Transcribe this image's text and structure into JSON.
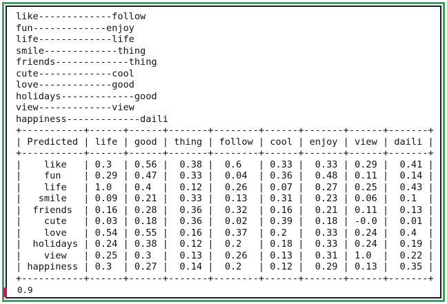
{
  "console": {
    "lines": [
      "like-------------follow",
      "fun-------------enjoy",
      "life-------------life",
      "smile-------------thing",
      "friends-------------thing",
      "cute-------------cool",
      "love-------------good",
      "holidays-------------good",
      "view-------------view",
      "happiness-------------daili",
      "+-----------+------+------+-------+--------+------+-------+------+-------+",
      "| Predicted | life | good | thing | follow | cool | enjoy | view | daili |",
      "+-----------+------+------+-------+--------+------+-------+------+-------+",
      "|    like   | 0.3  | 0.56 |  0.38 |  0.6   | 0.33 |  0.33 | 0.29 |  0.41 |",
      "|    fun    | 0.29 | 0.47 |  0.33 |  0.04  | 0.36 |  0.48 | 0.11 |  0.14 |",
      "|    life   | 1.0  | 0.4  |  0.12 |  0.26  | 0.07 |  0.27 | 0.25 |  0.43 |",
      "|   smile   | 0.09 | 0.21 |  0.33 |  0.13  | 0.31 |  0.23 | 0.06 |  0.1  |",
      "|  friends  | 0.16 | 0.28 |  0.36 |  0.32  | 0.16 |  0.21 | 0.11 |  0.13 |",
      "|    cute   | 0.03 | 0.18 |  0.36 |  0.02  | 0.39 |  0.18 | -0.0 |  0.01 |",
      "|    love   | 0.54 | 0.55 |  0.16 |  0.37  | 0.2  |  0.33 | 0.24 |  0.4  |",
      "|  holidays | 0.24 | 0.38 |  0.12 |  0.2   | 0.18 |  0.33 | 0.24 |  0.19 |",
      "|    view   | 0.25 | 0.3  |  0.13 |  0.26  | 0.13 |  0.31 | 1.0  |  0.22 |",
      "| happiness | 0.3  | 0.27 |  0.14 |  0.2   | 0.12 |  0.29 | 0.13 |  0.35 |",
      "+-----------+------+------+-------+--------+------+-------+------+-------+"
    ],
    "result": "0.9"
  },
  "colors": {
    "outer_border": "#3aa35b",
    "inner_border": "#1a1a1a",
    "text": "#111111",
    "cursor_marker": "#c2185b"
  }
}
